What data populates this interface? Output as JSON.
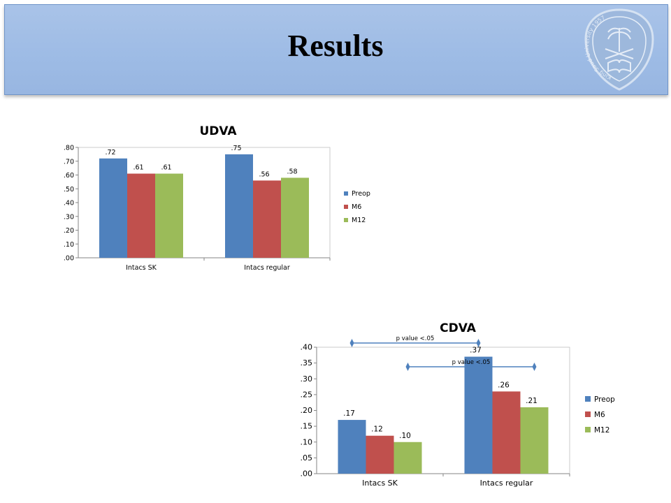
{
  "slide": {
    "title": "Results"
  },
  "logo": {
    "icon": "university-seal-icon",
    "text_ring": "King Saud University 1957"
  },
  "chart_data": [
    {
      "type": "bar",
      "title": "UDVA",
      "categories": [
        "Intacs SK",
        "Intacs regular"
      ],
      "series": [
        {
          "name": "Preop",
          "color": "#4f81bd",
          "values": [
            0.72,
            0.75
          ],
          "labels": [
            ".72",
            ".75"
          ]
        },
        {
          "name": "M6",
          "color": "#c0504d",
          "values": [
            0.61,
            0.56
          ],
          "labels": [
            ".61",
            ".56"
          ]
        },
        {
          "name": "M12",
          "color": "#9bbb59",
          "values": [
            0.61,
            0.58
          ],
          "labels": [
            ".61",
            ".58"
          ]
        }
      ],
      "yticks": [
        ".00",
        ".10",
        ".20",
        ".30",
        ".40",
        ".50",
        ".60",
        ".70",
        ".80"
      ],
      "ylim": [
        0,
        0.8
      ],
      "ystep": 0.1,
      "grid": false,
      "legend": "right",
      "annotations": []
    },
    {
      "type": "bar",
      "title": "CDVA",
      "categories": [
        "Intacs SK",
        "Intacs regular"
      ],
      "series": [
        {
          "name": "Preop",
          "color": "#4f81bd",
          "values": [
            0.17,
            0.37
          ],
          "labels": [
            ".17",
            ".37"
          ]
        },
        {
          "name": "M6",
          "color": "#c0504d",
          "values": [
            0.12,
            0.26
          ],
          "labels": [
            ".12",
            ".26"
          ]
        },
        {
          "name": "M12",
          "color": "#9bbb59",
          "values": [
            0.1,
            0.21
          ],
          "labels": [
            ".10",
            ".21"
          ]
        }
      ],
      "yticks": [
        ".00",
        ".05",
        ".10",
        ".15",
        ".20",
        ".25",
        ".30",
        ".35",
        ".40"
      ],
      "ylim": [
        0,
        0.4
      ],
      "ystep": 0.05,
      "grid": false,
      "legend": "right",
      "annotations": [
        {
          "text": "p value <.05",
          "from": {
            "category": 0,
            "series": 0
          },
          "to": {
            "category": 1,
            "series": 0
          }
        },
        {
          "text": "p value <.05",
          "from": {
            "category": 0,
            "series": 2
          },
          "to": {
            "category": 1,
            "series": 2
          }
        }
      ]
    }
  ]
}
